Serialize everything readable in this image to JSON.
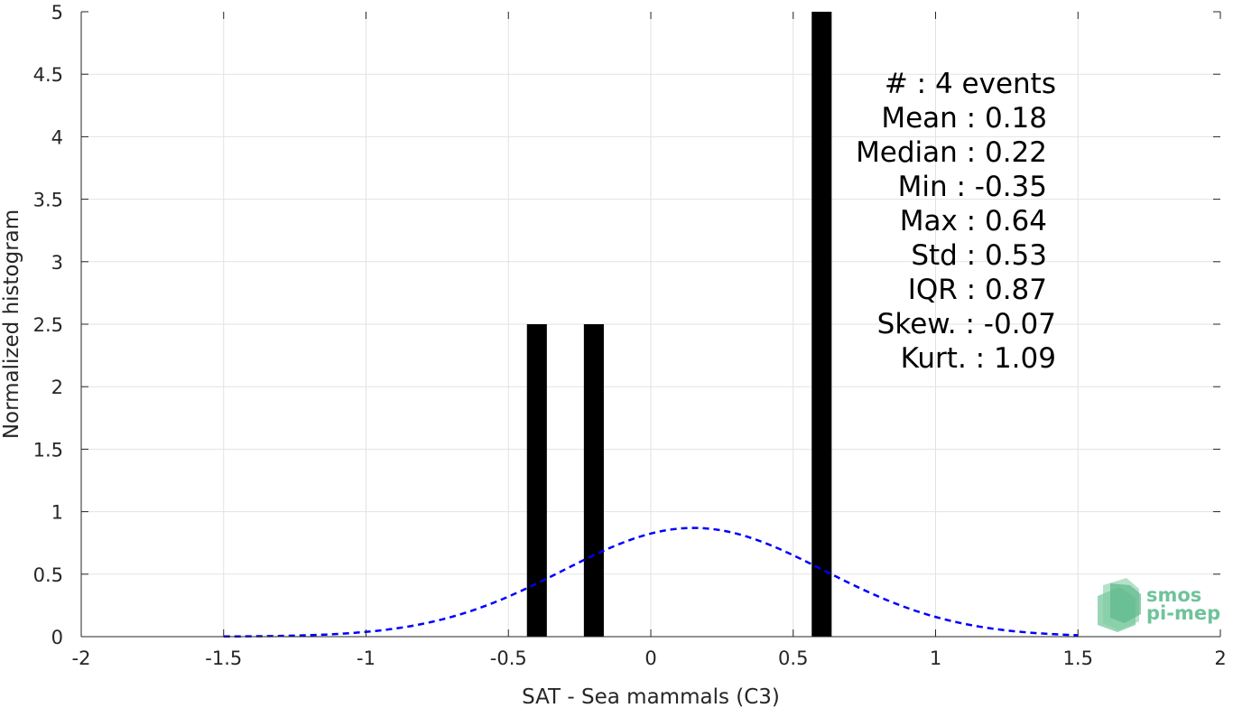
{
  "chart_data": {
    "type": "bar",
    "title": "",
    "xlabel": "SAT - Sea mammals (C3)",
    "ylabel": "Normalized histogram",
    "xlim": [
      -2,
      2
    ],
    "ylim": [
      0,
      5
    ],
    "x_ticks": [
      -2,
      -1.5,
      -1,
      -0.5,
      0,
      0.5,
      1,
      1.5,
      2
    ],
    "x_tick_labels": [
      "-2",
      "-1.5",
      "-1",
      "-0.5",
      "0",
      "0.5",
      "1",
      "1.5",
      "2"
    ],
    "y_ticks": [
      0,
      0.5,
      1,
      1.5,
      2,
      2.5,
      3,
      3.5,
      4,
      4.5,
      5
    ],
    "y_tick_labels": [
      "0",
      "0.5",
      "1",
      "1.5",
      "2",
      "2.5",
      "3",
      "3.5",
      "4",
      "4.5",
      "5"
    ],
    "grid": true,
    "bin_width": 0.07,
    "bars": [
      {
        "x": -0.4,
        "value": 2.5
      },
      {
        "x": -0.2,
        "value": 2.5
      },
      {
        "x": 0.6,
        "value": 5
      }
    ],
    "bar_color": "#000000",
    "fit_curve": {
      "type": "gaussian",
      "mean": 0.15,
      "std": 0.46,
      "x_range": [
        -1.5,
        1.5
      ],
      "peak": 0.87,
      "color": "#0000ff",
      "style": "dashed"
    },
    "stats": [
      "#  : 4 events",
      "Mean : 0.18",
      "Median : 0.22",
      "Min : -0.35",
      "Max : 0.64",
      "Std : 0.53",
      "IQR : 0.87",
      "Skew. : -0.07",
      "Kurt. : 1.09"
    ]
  },
  "logo": {
    "line1": "smos",
    "line2": "pi-mep",
    "color": "#6fc39a"
  }
}
